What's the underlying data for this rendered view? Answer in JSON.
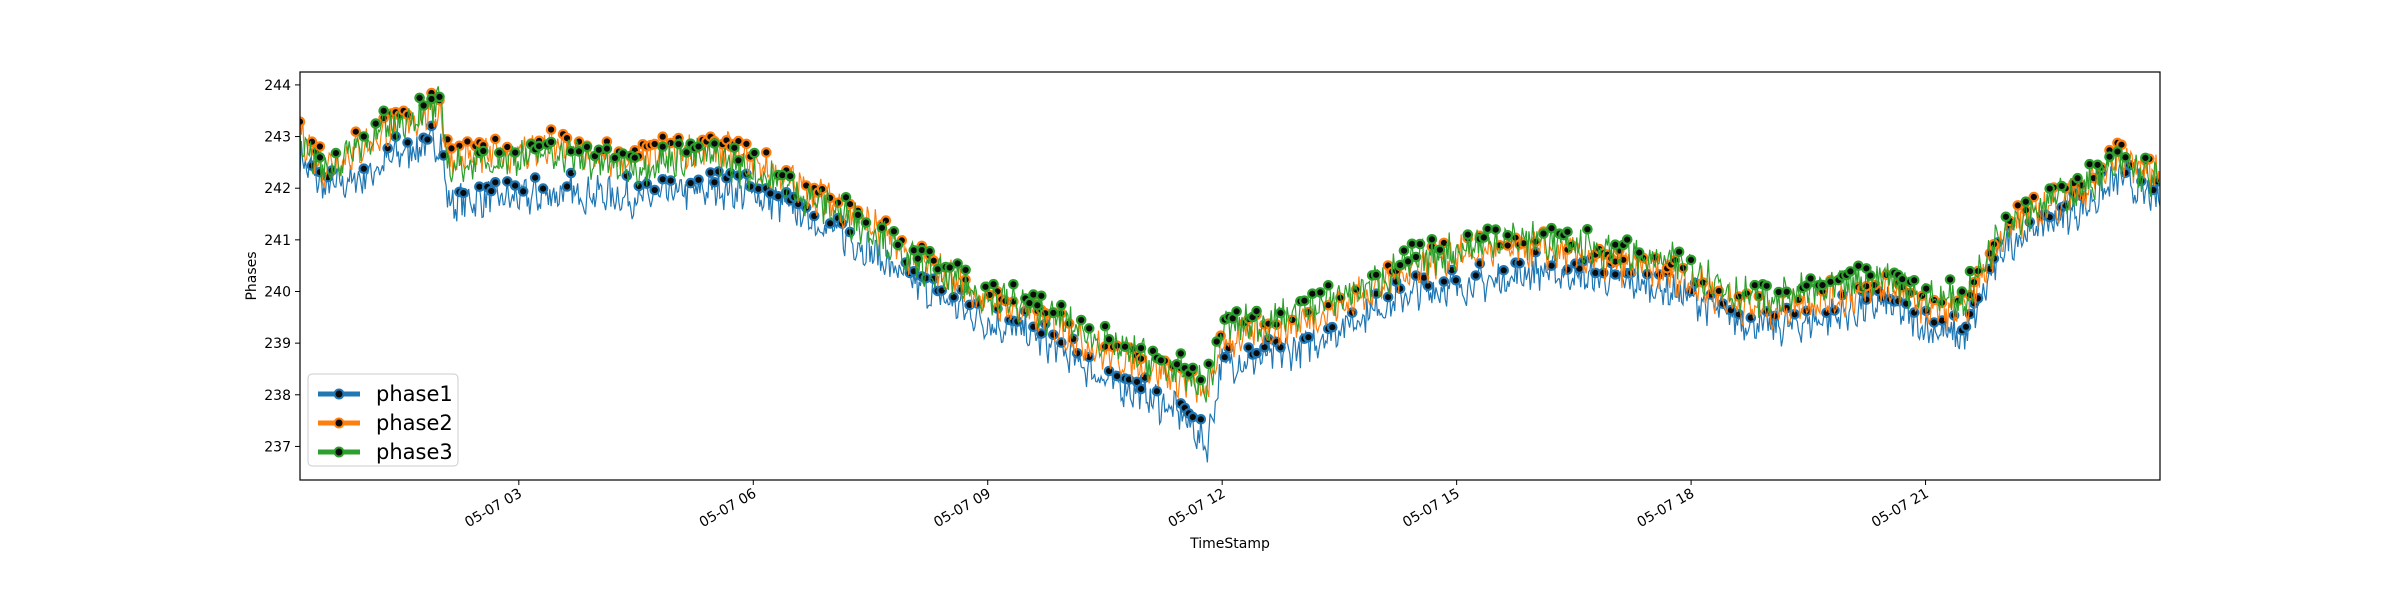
{
  "chart_data": {
    "type": "line",
    "title": "",
    "xlabel": "TimeStamp",
    "ylabel": "Phases",
    "x_range": [
      0.2,
      24.0
    ],
    "ylim": [
      236.35,
      244.25
    ],
    "grid": false,
    "legend_position": "bottom-left",
    "x_ticks": [
      {
        "value": 3,
        "label": "05-07 03"
      },
      {
        "value": 6,
        "label": "05-07 06"
      },
      {
        "value": 9,
        "label": "05-07 09"
      },
      {
        "value": 12,
        "label": "05-07 12"
      },
      {
        "value": 15,
        "label": "05-07 15"
      },
      {
        "value": 18,
        "label": "05-07 18"
      },
      {
        "value": 21,
        "label": "05-07 21"
      }
    ],
    "y_ticks": [
      237,
      238,
      239,
      240,
      241,
      242,
      243,
      244
    ],
    "x": [
      0.2,
      0.5,
      1.0,
      1.5,
      2.0,
      2.1,
      2.5,
      3.0,
      3.5,
      4.0,
      4.5,
      5.0,
      5.5,
      6.0,
      6.5,
      7.0,
      7.5,
      8.0,
      8.5,
      9.0,
      9.5,
      10.0,
      10.5,
      11.0,
      11.5,
      11.8,
      12.0,
      12.5,
      13.0,
      13.5,
      14.0,
      14.5,
      15.0,
      15.5,
      16.0,
      16.5,
      17.0,
      17.5,
      18.0,
      18.5,
      19.0,
      19.5,
      20.0,
      20.5,
      21.0,
      21.5,
      22.0,
      22.5,
      23.0,
      23.5,
      24.0
    ],
    "series": [
      {
        "name": "phase1",
        "color": "#1f77b4",
        "values": [
          242.6,
          242.0,
          242.2,
          242.7,
          242.9,
          241.7,
          241.8,
          241.8,
          241.9,
          241.9,
          241.8,
          241.9,
          242.0,
          241.9,
          241.6,
          241.2,
          240.8,
          240.2,
          239.8,
          239.4,
          239.2,
          238.8,
          238.3,
          238.0,
          237.6,
          237.0,
          238.6,
          238.7,
          238.9,
          239.3,
          239.7,
          240.0,
          240.1,
          240.2,
          240.4,
          240.3,
          240.2,
          240.1,
          239.9,
          239.5,
          239.3,
          239.4,
          239.6,
          239.8,
          239.3,
          239.1,
          240.9,
          241.3,
          241.6,
          242.2,
          241.7
        ]
      },
      {
        "name": "phase2",
        "color": "#ff7f0e",
        "values": [
          243.1,
          242.4,
          242.8,
          243.3,
          243.5,
          242.6,
          242.6,
          242.7,
          242.8,
          242.6,
          242.5,
          242.7,
          242.8,
          242.5,
          242.1,
          241.7,
          241.3,
          240.7,
          240.3,
          239.8,
          239.6,
          239.2,
          238.8,
          238.6,
          238.3,
          238.0,
          239.0,
          239.2,
          239.4,
          239.7,
          240.1,
          240.5,
          240.7,
          240.8,
          240.8,
          240.7,
          240.5,
          240.4,
          240.2,
          239.8,
          239.6,
          239.8,
          239.9,
          240.1,
          239.7,
          239.6,
          241.2,
          241.6,
          241.9,
          242.6,
          242.2
        ]
      },
      {
        "name": "phase3",
        "color": "#2ca02c",
        "values": [
          243.0,
          242.3,
          242.9,
          243.3,
          243.6,
          242.4,
          242.5,
          242.6,
          242.7,
          242.5,
          242.4,
          242.6,
          242.6,
          242.3,
          242.0,
          241.6,
          241.2,
          240.6,
          240.2,
          239.9,
          239.7,
          239.4,
          239.0,
          238.7,
          238.4,
          238.1,
          239.3,
          239.4,
          239.6,
          239.9,
          240.2,
          240.6,
          240.8,
          241.0,
          241.0,
          240.9,
          240.8,
          240.6,
          240.5,
          240.0,
          239.8,
          240.0,
          240.1,
          240.3,
          239.9,
          239.8,
          241.3,
          241.7,
          242.0,
          242.5,
          242.1
        ]
      }
    ]
  }
}
